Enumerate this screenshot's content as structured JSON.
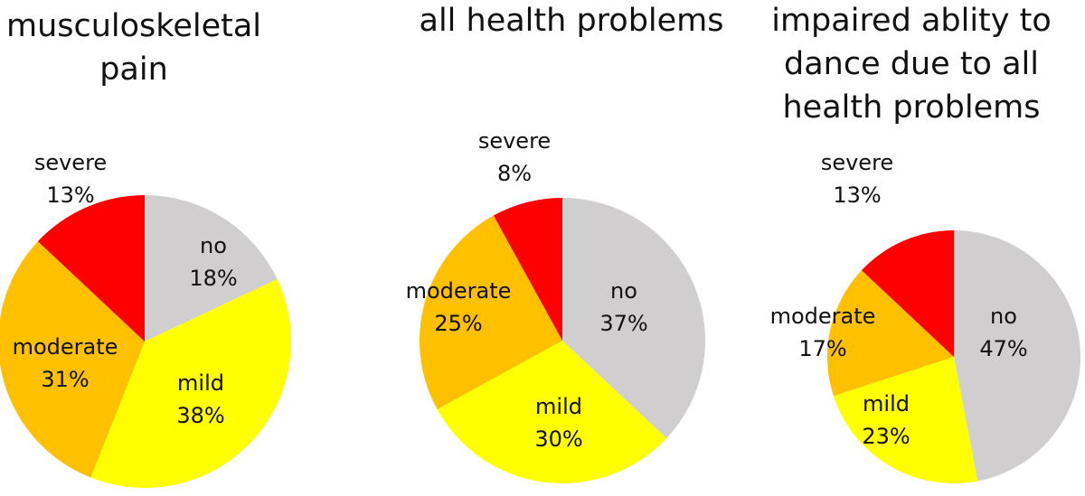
{
  "chart_data": [
    {
      "type": "pie",
      "title": [
        "musculoskeletal",
        "pain"
      ],
      "slices": [
        {
          "label": "no",
          "value": 18,
          "pct_text": "18%"
        },
        {
          "label": "mild",
          "value": 38,
          "pct_text": "38%"
        },
        {
          "label": "moderate",
          "value": 31,
          "pct_text": "31%"
        },
        {
          "label": "severe",
          "value": 13,
          "pct_text": "13%"
        }
      ]
    },
    {
      "type": "pie",
      "title": [
        "all health problems"
      ],
      "slices": [
        {
          "label": "no",
          "value": 37,
          "pct_text": "37%"
        },
        {
          "label": "mild",
          "value": 30,
          "pct_text": "30%"
        },
        {
          "label": "moderate",
          "value": 25,
          "pct_text": "25%"
        },
        {
          "label": "severe",
          "value": 8,
          "pct_text": "8%"
        }
      ]
    },
    {
      "type": "pie",
      "title": [
        "impaired ablity to",
        "dance due to all",
        "health problems"
      ],
      "slices": [
        {
          "label": "no",
          "value": 47,
          "pct_text": "47%"
        },
        {
          "label": "mild",
          "value": 23,
          "pct_text": "23%"
        },
        {
          "label": "moderate",
          "value": 17,
          "pct_text": "17%"
        },
        {
          "label": "severe",
          "value": 13,
          "pct_text": "13%"
        }
      ]
    }
  ],
  "colors": {
    "no": "#d0cece",
    "mild": "#ffff00",
    "moderate": "#ffc000",
    "severe": "#ff0000"
  }
}
